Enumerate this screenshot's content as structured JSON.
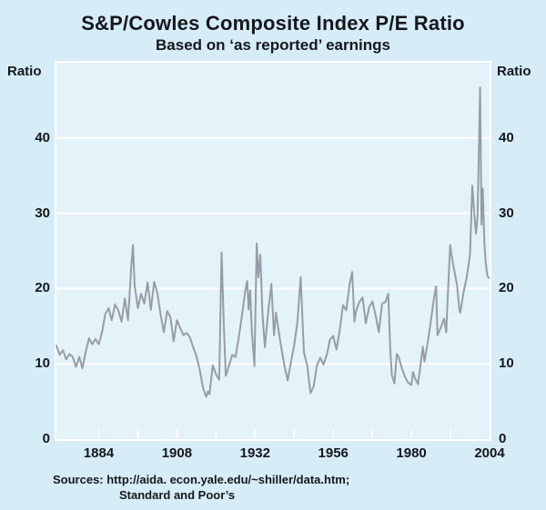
{
  "title": "S&P/Cowles Composite Index P/E Ratio",
  "subtitle": "Based on ‘as reported’ earnings",
  "axis_label_left": "Ratio",
  "axis_label_right": "Ratio",
  "sources_line1": "Sources: http://aida. econ.yale.edu/~shiller/data.htm;",
  "sources_line2": "Standard and Poor’s",
  "colors": {
    "page_background": "#d6ecf7",
    "plot_background": "#e4f2fa",
    "grid_and_frame": "#ffffff",
    "line": "#969ea4",
    "text": "#14181c"
  },
  "chart_data": {
    "type": "line",
    "title": "S&P/Cowles Composite Index P/E Ratio",
    "subtitle": "Based on ‘as reported’ earnings",
    "ylabel": "Ratio",
    "xlabel": "",
    "ylim": [
      0,
      50
    ],
    "yticks": [
      0,
      10,
      20,
      30,
      40
    ],
    "xlim": [
      1871,
      2004
    ],
    "xtick_labels": [
      1884,
      1908,
      1932,
      1956,
      1980,
      2004
    ],
    "xtick_minor_start": 1884,
    "xtick_minor_interval": 12,
    "grid": "horizontal-white",
    "legend": "none",
    "series": [
      {
        "name": "S&P/Cowles Composite Index P/E ratio",
        "color": "#969ea4",
        "points": [
          [
            1871,
            12.4
          ],
          [
            1872,
            11.2
          ],
          [
            1873,
            11.8
          ],
          [
            1874,
            10.6
          ],
          [
            1875,
            11.3
          ],
          [
            1876,
            10.9
          ],
          [
            1877,
            9.6
          ],
          [
            1878,
            10.9
          ],
          [
            1879,
            9.4
          ],
          [
            1880,
            11.6
          ],
          [
            1881,
            13.4
          ],
          [
            1882,
            12.6
          ],
          [
            1883,
            13.3
          ],
          [
            1884,
            12.6
          ],
          [
            1885,
            14.2
          ],
          [
            1886,
            16.6
          ],
          [
            1887,
            17.4
          ],
          [
            1888,
            15.8
          ],
          [
            1889,
            17.9
          ],
          [
            1890,
            17.1
          ],
          [
            1891,
            15.6
          ],
          [
            1892,
            18.7
          ],
          [
            1893,
            15.8
          ],
          [
            1894,
            23.0
          ],
          [
            1894.5,
            25.8
          ],
          [
            1895,
            20.5
          ],
          [
            1896,
            17.4
          ],
          [
            1897,
            19.3
          ],
          [
            1898,
            18.0
          ],
          [
            1899,
            20.8
          ],
          [
            1900,
            17.2
          ],
          [
            1901,
            20.9
          ],
          [
            1902,
            19.4
          ],
          [
            1903,
            16.5
          ],
          [
            1904,
            14.2
          ],
          [
            1905,
            17.0
          ],
          [
            1906,
            16.2
          ],
          [
            1907,
            13.0
          ],
          [
            1908,
            15.8
          ],
          [
            1909,
            14.8
          ],
          [
            1910,
            13.8
          ],
          [
            1911,
            14.1
          ],
          [
            1912,
            13.5
          ],
          [
            1913,
            12.2
          ],
          [
            1914,
            11.0
          ],
          [
            1915,
            9.2
          ],
          [
            1916,
            6.8
          ],
          [
            1917,
            5.6
          ],
          [
            1917.5,
            6.3
          ],
          [
            1918,
            6.0
          ],
          [
            1919,
            9.8
          ],
          [
            1920,
            8.6
          ],
          [
            1921,
            7.9
          ],
          [
            1921.7,
            24.8
          ],
          [
            1922.4,
            15.0
          ],
          [
            1923,
            8.4
          ],
          [
            1924,
            9.8
          ],
          [
            1925,
            11.2
          ],
          [
            1926,
            10.9
          ],
          [
            1927,
            13.5
          ],
          [
            1928,
            16.5
          ],
          [
            1929,
            19.8
          ],
          [
            1929.6,
            21.0
          ],
          [
            1930,
            17.2
          ],
          [
            1930.5,
            19.8
          ],
          [
            1931,
            14.5
          ],
          [
            1931.8,
            9.7
          ],
          [
            1932.5,
            26.0
          ],
          [
            1933,
            21.5
          ],
          [
            1933.6,
            24.5
          ],
          [
            1934.3,
            16.5
          ],
          [
            1935,
            12.2
          ],
          [
            1936,
            16.8
          ],
          [
            1937,
            20.6
          ],
          [
            1937.8,
            13.8
          ],
          [
            1938.4,
            16.8
          ],
          [
            1939,
            15.0
          ],
          [
            1940,
            12.3
          ],
          [
            1941,
            9.8
          ],
          [
            1942,
            7.8
          ],
          [
            1943,
            10.2
          ],
          [
            1944,
            12.5
          ],
          [
            1945,
            15.5
          ],
          [
            1946,
            21.5
          ],
          [
            1947,
            11.5
          ],
          [
            1948,
            9.8
          ],
          [
            1949,
            6.1
          ],
          [
            1950,
            7.0
          ],
          [
            1951,
            9.8
          ],
          [
            1952,
            10.8
          ],
          [
            1953,
            9.9
          ],
          [
            1954,
            11.2
          ],
          [
            1955,
            13.2
          ],
          [
            1956,
            13.7
          ],
          [
            1957,
            11.9
          ],
          [
            1958,
            14.5
          ],
          [
            1959,
            17.8
          ],
          [
            1960,
            17.1
          ],
          [
            1961,
            20.5
          ],
          [
            1961.8,
            22.2
          ],
          [
            1962.5,
            15.6
          ],
          [
            1963,
            17.0
          ],
          [
            1964,
            18.2
          ],
          [
            1965,
            18.8
          ],
          [
            1966,
            15.4
          ],
          [
            1967,
            17.5
          ],
          [
            1968,
            18.3
          ],
          [
            1969,
            16.5
          ],
          [
            1970,
            14.2
          ],
          [
            1971,
            18.0
          ],
          [
            1972,
            18.2
          ],
          [
            1972.9,
            19.3
          ],
          [
            1973.5,
            12.0
          ],
          [
            1974,
            8.5
          ],
          [
            1974.8,
            7.4
          ],
          [
            1975.5,
            11.3
          ],
          [
            1976,
            11.0
          ],
          [
            1977,
            9.5
          ],
          [
            1978,
            8.3
          ],
          [
            1979,
            7.5
          ],
          [
            1980,
            7.2
          ],
          [
            1980.5,
            8.9
          ],
          [
            1981,
            8.2
          ],
          [
            1982,
            7.3
          ],
          [
            1982.8,
            9.8
          ],
          [
            1983.5,
            12.3
          ],
          [
            1984,
            10.3
          ],
          [
            1985,
            12.8
          ],
          [
            1986,
            15.8
          ],
          [
            1987,
            19.0
          ],
          [
            1987.6,
            20.3
          ],
          [
            1988,
            13.8
          ],
          [
            1989,
            14.8
          ],
          [
            1990,
            16.0
          ],
          [
            1990.7,
            14.2
          ],
          [
            1991,
            17.5
          ],
          [
            1991.9,
            25.8
          ],
          [
            1992.5,
            24.0
          ],
          [
            1993,
            22.8
          ],
          [
            1994,
            20.5
          ],
          [
            1994.7,
            17.3
          ],
          [
            1995,
            16.8
          ],
          [
            1996,
            19.5
          ],
          [
            1997,
            21.5
          ],
          [
            1998,
            24.5
          ],
          [
            1998.7,
            33.7
          ],
          [
            1999.3,
            30.0
          ],
          [
            1999.8,
            27.3
          ],
          [
            2000.3,
            29.5
          ],
          [
            2001.1,
            46.7
          ],
          [
            2001.5,
            28.5
          ],
          [
            2001.9,
            33.3
          ],
          [
            2002.4,
            26.0
          ],
          [
            2002.8,
            23.5
          ],
          [
            2003.3,
            21.7
          ],
          [
            2003.8,
            21.4
          ]
        ]
      }
    ]
  }
}
